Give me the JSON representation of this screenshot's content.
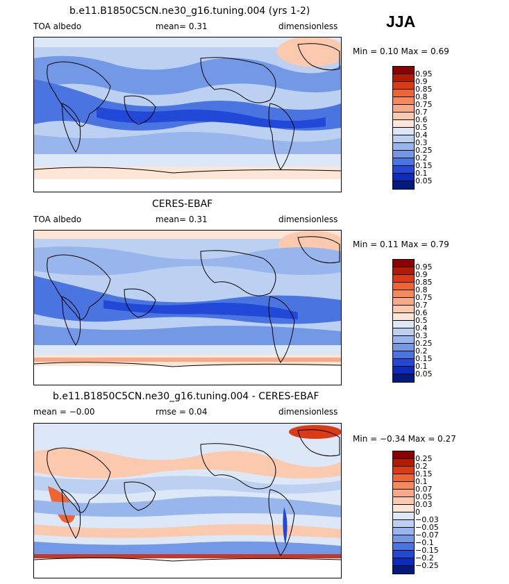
{
  "season": "JJA",
  "panels": [
    {
      "title": "b.e11.B1850C5CN.ne30_g16.tuning.004 (yrs 1-2)",
      "left_label": "TOA albedo",
      "mid_label": "mean=    0.31",
      "right_label": "dimensionless",
      "minmax": "Min =    0.10  Max =    0.69",
      "colorbar": {
        "labels": [
          "0.95",
          "0.9",
          "0.85",
          "0.8",
          "0.75",
          "0.7",
          "0.6",
          "0.5",
          "0.4",
          "0.3",
          "0.25",
          "0.2",
          "0.15",
          "0.1",
          "0.05"
        ],
        "colors": [
          "#8b0000",
          "#b31a00",
          "#d93b16",
          "#ef6433",
          "#f4895c",
          "#f7a988",
          "#fbc9ae",
          "#fde6d6",
          "#dce8f7",
          "#bcd1f1",
          "#98b6ec",
          "#7398e6",
          "#4a74e0",
          "#2148d6",
          "#0b2bb8",
          "#001a80"
        ]
      }
    },
    {
      "title": "CERES-EBAF",
      "left_label": "TOA albedo",
      "mid_label": "mean=    0.31",
      "right_label": "dimensionless",
      "minmax": "Min =    0.11  Max =    0.79",
      "colorbar": {
        "labels": [
          "0.95",
          "0.9",
          "0.85",
          "0.8",
          "0.75",
          "0.7",
          "0.6",
          "0.5",
          "0.4",
          "0.3",
          "0.25",
          "0.2",
          "0.15",
          "0.1",
          "0.05"
        ],
        "colors": [
          "#8b0000",
          "#b31a00",
          "#d93b16",
          "#ef6433",
          "#f4895c",
          "#f7a988",
          "#fbc9ae",
          "#fde6d6",
          "#dce8f7",
          "#bcd1f1",
          "#98b6ec",
          "#7398e6",
          "#4a74e0",
          "#2148d6",
          "#0b2bb8",
          "#001a80"
        ]
      }
    },
    {
      "title": "b.e11.B1850C5CN.ne30_g16.tuning.004 - CERES-EBAF",
      "left_label": "mean =   −0.00",
      "mid_label": "rmse =    0.04",
      "right_label": "dimensionless",
      "minmax": "Min =   −0.34  Max =    0.27",
      "colorbar": {
        "labels": [
          "0.25",
          "0.2",
          "0.15",
          "0.1",
          "0.07",
          "0.05",
          "0.03",
          "0",
          "−0.03",
          "−0.05",
          "−0.07",
          "−0.1",
          "−0.15",
          "−0.2",
          "−0.25"
        ],
        "colors": [
          "#8b0000",
          "#b31a00",
          "#d93b16",
          "#ef6433",
          "#f4895c",
          "#f7a988",
          "#fbc9ae",
          "#fde6d6",
          "#dce8f7",
          "#bcd1f1",
          "#98b6ec",
          "#7398e6",
          "#4a74e0",
          "#2148d6",
          "#0b2bb8",
          "#001a80"
        ]
      }
    }
  ]
}
